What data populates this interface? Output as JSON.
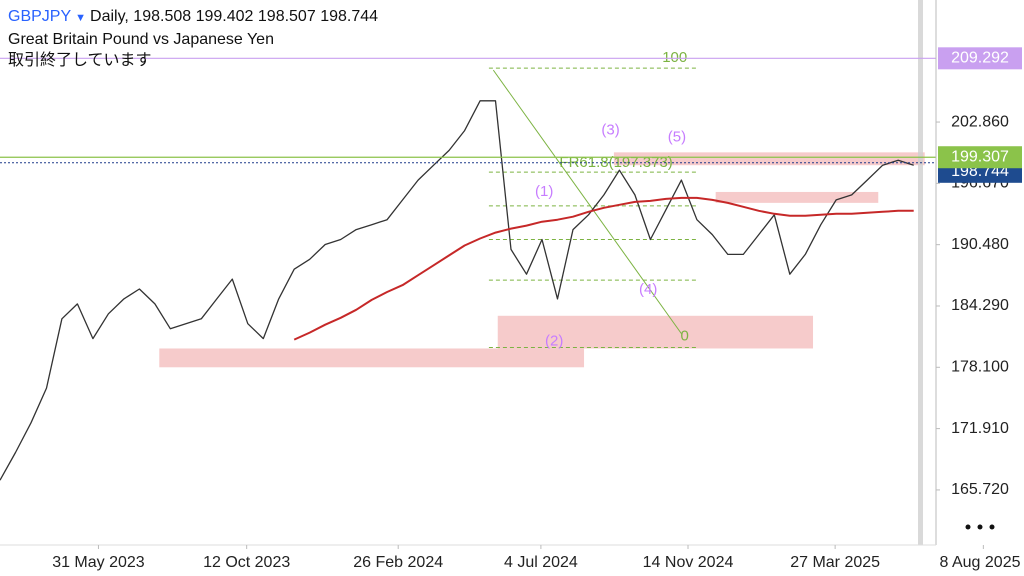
{
  "chart_data": {
    "type": "line",
    "title": "GBPJPY",
    "interval": "Daily",
    "ohlc": {
      "open": 198.508,
      "high": 199.402,
      "low": 198.507,
      "close": 198.744
    },
    "subtitle": "Great Britain Pound vs Japanese Yen",
    "status": "取引終了しています",
    "x": [
      "2023-03-03",
      "2023-03-17",
      "2023-03-31",
      "2023-04-14",
      "2023-04-28",
      "2023-05-12",
      "2023-05-26",
      "2023-06-09",
      "2023-06-23",
      "2023-07-07",
      "2023-07-21",
      "2023-08-04",
      "2023-08-18",
      "2023-09-01",
      "2023-09-15",
      "2023-09-29",
      "2023-10-13",
      "2023-10-27",
      "2023-11-10",
      "2023-11-24",
      "2023-12-08",
      "2023-12-22",
      "2024-01-05",
      "2024-01-19",
      "2024-02-02",
      "2024-02-16",
      "2024-03-01",
      "2024-03-15",
      "2024-03-29",
      "2024-04-12",
      "2024-04-26",
      "2024-05-10",
      "2024-05-24",
      "2024-06-07",
      "2024-06-21",
      "2024-07-05",
      "2024-07-19",
      "2024-08-02",
      "2024-08-16",
      "2024-08-30",
      "2024-09-13",
      "2024-09-27",
      "2024-10-11",
      "2024-10-25",
      "2024-11-08",
      "2024-11-22",
      "2024-12-06",
      "2024-12-20",
      "2025-01-03",
      "2025-01-17",
      "2025-01-31",
      "2025-02-14",
      "2025-02-28",
      "2025-03-14",
      "2025-03-28",
      "2025-04-11",
      "2025-04-25",
      "2025-05-09",
      "2025-05-23",
      "2025-06-06"
    ],
    "series": [
      {
        "color": "#333333",
        "values": [
          166.7,
          169.5,
          172.5,
          176,
          183,
          184.5,
          181,
          183.5,
          185,
          186,
          184.5,
          182,
          182.5,
          183,
          185,
          187,
          182.5,
          181,
          185,
          188,
          189,
          190.5,
          191,
          192,
          192.5,
          193,
          195,
          197,
          198.5,
          200,
          202,
          205,
          205,
          190,
          187.5,
          191,
          185,
          192,
          193.5,
          195.5,
          198,
          195.5,
          191,
          194,
          197,
          193,
          191.5,
          189.5,
          189.5,
          191.5,
          193.5,
          187.5,
          189.5,
          192.5,
          195,
          195.5,
          197,
          198.5,
          199,
          198.5
        ]
      },
      {
        "color": "#c62828",
        "values": [
          null,
          null,
          null,
          null,
          null,
          null,
          null,
          null,
          null,
          null,
          null,
          null,
          null,
          null,
          null,
          null,
          null,
          null,
          null,
          180.9,
          181.6,
          182.4,
          183.1,
          183.9,
          184.9,
          185.7,
          186.4,
          187.4,
          188.4,
          189.4,
          190.4,
          191.1,
          191.7,
          192.1,
          192.4,
          192.8,
          193.0,
          193.3,
          193.8,
          194.2,
          194.5,
          194.8,
          194.9,
          195.1,
          195.2,
          195.2,
          195.0,
          194.7,
          194.3,
          193.9,
          193.6,
          193.4,
          193.4,
          193.5,
          193.6,
          193.6,
          193.7,
          193.8,
          193.9,
          193.9
        ]
      }
    ],
    "xlim": [
      "2023-03-03",
      "2025-06-28"
    ],
    "xticks": [
      {
        "value": "2023-05-31",
        "label": "31 May 2023"
      },
      {
        "value": "2023-10-12",
        "label": "12 Oct 2023"
      },
      {
        "value": "2024-02-26",
        "label": "26 Feb 2024"
      },
      {
        "value": "2024-07-04",
        "label": "4 Jul 2024"
      },
      {
        "value": "2024-11-14",
        "label": "14 Nov 2024"
      },
      {
        "value": "2025-03-27",
        "label": "27 Mar 2025"
      },
      {
        "value": "2025-08-08",
        "label": "8 Aug 2025"
      }
    ],
    "ylim": [
      160.16,
      215.18
    ],
    "yticks": [
      {
        "value": 202.86,
        "label": "202.860"
      },
      {
        "value": 196.67,
        "label": "196.670"
      },
      {
        "value": 190.48,
        "label": "190.480"
      },
      {
        "value": 184.29,
        "label": "184.290"
      },
      {
        "value": 178.1,
        "label": "178.100"
      },
      {
        "value": 171.91,
        "label": "171.910"
      },
      {
        "value": 165.72,
        "label": "165.720"
      }
    ],
    "price_lines": [
      {
        "value": 209.292,
        "color": "#c9a0f0"
      },
      {
        "value": 199.307,
        "color": "#8bc34a"
      }
    ],
    "zones": [
      {
        "x": [
          "2023-07-25",
          "2024-08-12"
        ],
        "y": [
          178.1,
          180.0
        ]
      },
      {
        "x": [
          "2024-05-26",
          "2025-03-07"
        ],
        "y": [
          180.0,
          183.3
        ]
      },
      {
        "x": [
          "2024-12-09",
          "2025-05-05"
        ],
        "y": [
          194.7,
          195.8
        ]
      },
      {
        "x": [
          "2024-09-08",
          "2025-06-16"
        ],
        "y": [
          198.5,
          199.8
        ]
      }
    ],
    "fib": {
      "x": [
        "2024-05-18",
        "2024-11-22"
      ],
      "levels": [
        208.3,
        197.8,
        194.4,
        191.0,
        186.9,
        180.1
      ],
      "color": "#7cb342"
    },
    "trend_line": {
      "x": [
        "2024-05-22",
        "2024-11-08"
      ],
      "y": [
        208.1,
        181.5
      ],
      "color": "#7cb342"
    },
    "annotations": [
      {
        "text": "100",
        "x": "2024-11-02",
        "y": 209.3,
        "color": "#7cb342"
      },
      {
        "text": "FR61.8(197.373)",
        "x": "2024-09-10",
        "y": 198.7,
        "color": "#7cb342"
      },
      {
        "text": "0",
        "x": "2024-11-11",
        "y": 181.2,
        "color": "#7cb342"
      },
      {
        "text": "(1)",
        "x": "2024-07-07",
        "y": 195.8,
        "color": "#c77dff"
      },
      {
        "text": "(2)",
        "x": "2024-07-16",
        "y": 180.7,
        "color": "#c77dff"
      },
      {
        "text": "(3)",
        "x": "2024-09-05",
        "y": 202.0,
        "color": "#c77dff"
      },
      {
        "text": "(4)",
        "x": "2024-10-09",
        "y": 185.9,
        "color": "#c77dff"
      },
      {
        "text": "(5)",
        "x": "2024-11-04",
        "y": 201.3,
        "color": "#c77dff"
      }
    ]
  }
}
